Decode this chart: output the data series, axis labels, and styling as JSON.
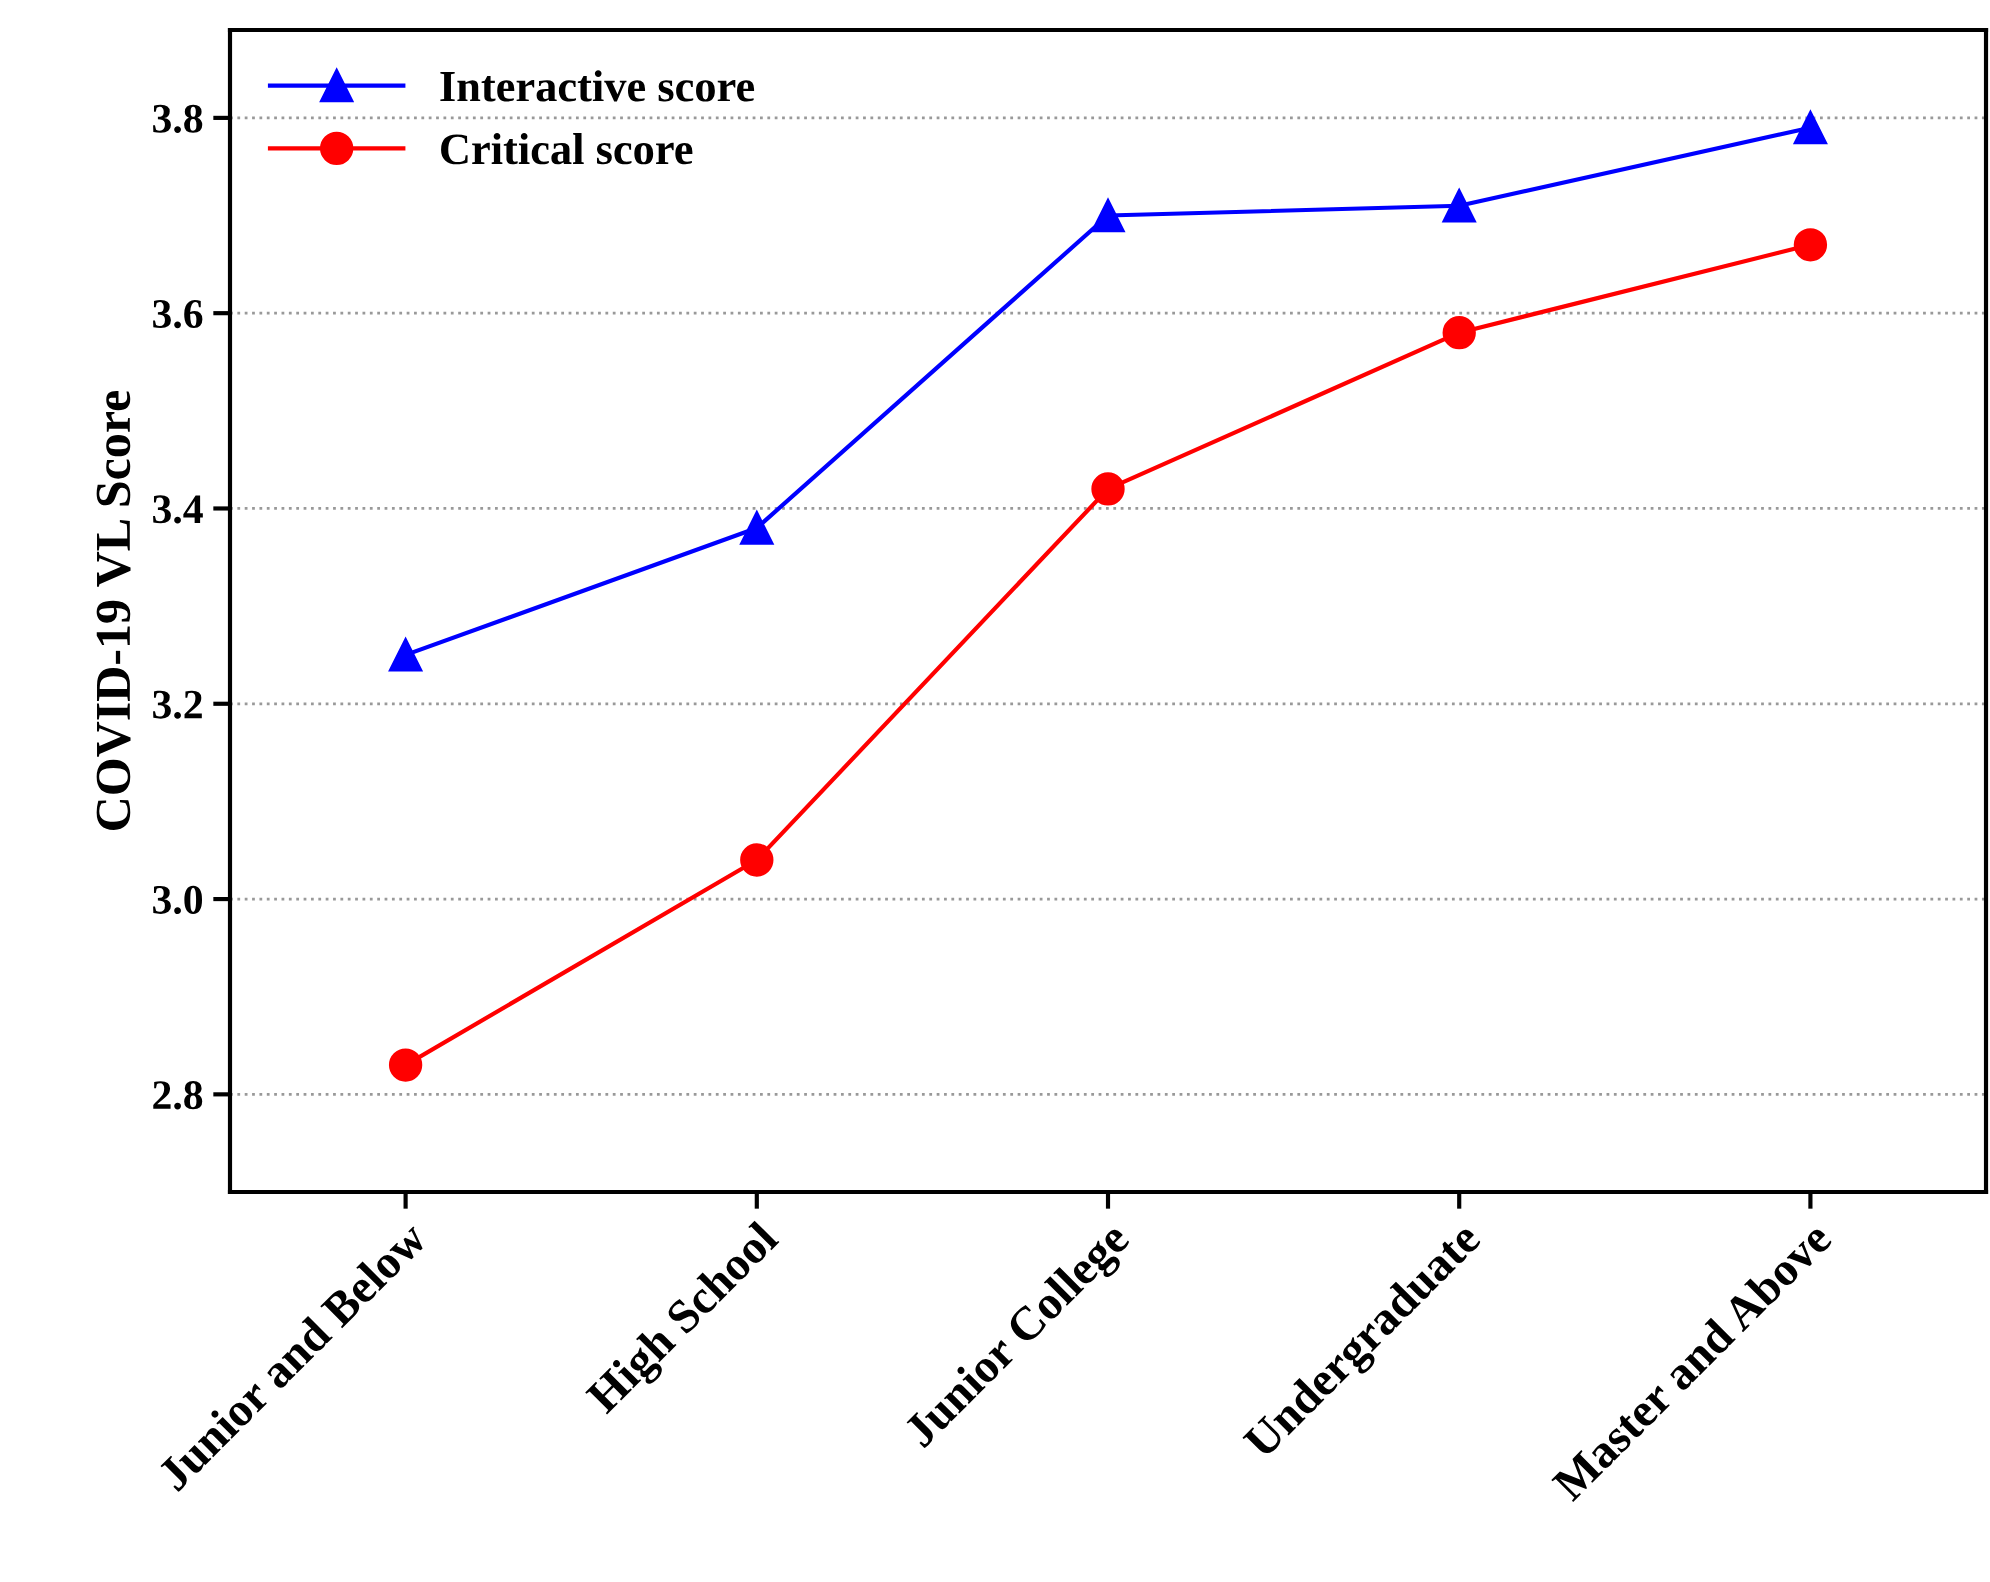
{
  "chart_data": {
    "type": "line",
    "ylabel": "COVID-19 VL Score",
    "categories": [
      "Junior and Below",
      "High School",
      "Junior College",
      "Undergraduate",
      "Master and Above"
    ],
    "series": [
      {
        "name": "Interactive score",
        "color": "#0000ff",
        "marker": "triangle",
        "values": [
          3.25,
          3.38,
          3.7,
          3.71,
          3.79
        ]
      },
      {
        "name": "Critical score",
        "color": "#ff0000",
        "marker": "circle",
        "values": [
          2.83,
          3.04,
          3.42,
          3.58,
          3.67
        ]
      }
    ],
    "ylim": [
      2.7,
      3.89
    ],
    "yticks": [
      2.8,
      {
        "value": 3.0,
        "label": "3.0"
      },
      3.2,
      3.4,
      3.6,
      3.8
    ],
    "grid": "y",
    "legend": "top left",
    "line_style": "solid"
  }
}
